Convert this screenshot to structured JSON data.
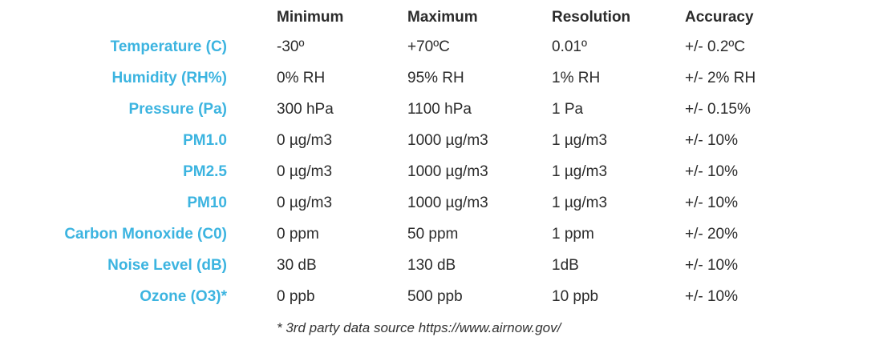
{
  "columns": {
    "minimum": "Minimum",
    "maximum": "Maximum",
    "resolution": "Resolution",
    "accuracy": "Accuracy"
  },
  "rows": [
    {
      "label": "Temperature (C)",
      "minimum": "-30º",
      "maximum": "+70ºC",
      "resolution": "0.01º",
      "accuracy": "+/- 0.2ºC"
    },
    {
      "label": "Humidity (RH%)",
      "minimum": "0% RH",
      "maximum": "95% RH",
      "resolution": "1% RH",
      "accuracy": "+/- 2% RH"
    },
    {
      "label": "Pressure (Pa)",
      "minimum": "300 hPa",
      "maximum": "1100 hPa",
      "resolution": "1 Pa",
      "accuracy": "+/- 0.15%"
    },
    {
      "label": "PM1.0",
      "minimum": "0 µg/m3",
      "maximum": "1000 µg/m3",
      "resolution": "1 µg/m3",
      "accuracy": "+/- 10%"
    },
    {
      "label": "PM2.5",
      "minimum": "0 µg/m3",
      "maximum": "1000 µg/m3",
      "resolution": "1 µg/m3",
      "accuracy": "+/- 10%"
    },
    {
      "label": "PM10",
      "minimum": "0 µg/m3",
      "maximum": "1000 µg/m3",
      "resolution": "1 µg/m3",
      "accuracy": "+/- 10%"
    },
    {
      "label": "Carbon Monoxide (C0)",
      "minimum": "0 ppm",
      "maximum": "50 ppm",
      "resolution": "1 ppm",
      "accuracy": "+/- 20%"
    },
    {
      "label": "Noise Level (dB)",
      "minimum": "30 dB",
      "maximum": "130 dB",
      "resolution": "1dB",
      "accuracy": "+/- 10%"
    },
    {
      "label": "Ozone (O3)*",
      "minimum": "0 ppb",
      "maximum": "500 ppb",
      "resolution": "10 ppb",
      "accuracy": "+/- 10%"
    }
  ],
  "footnote": "* 3rd party data source https://www.airnow.gov/",
  "colors": {
    "label": "#3cb4e0",
    "text": "#2b2b2b"
  }
}
